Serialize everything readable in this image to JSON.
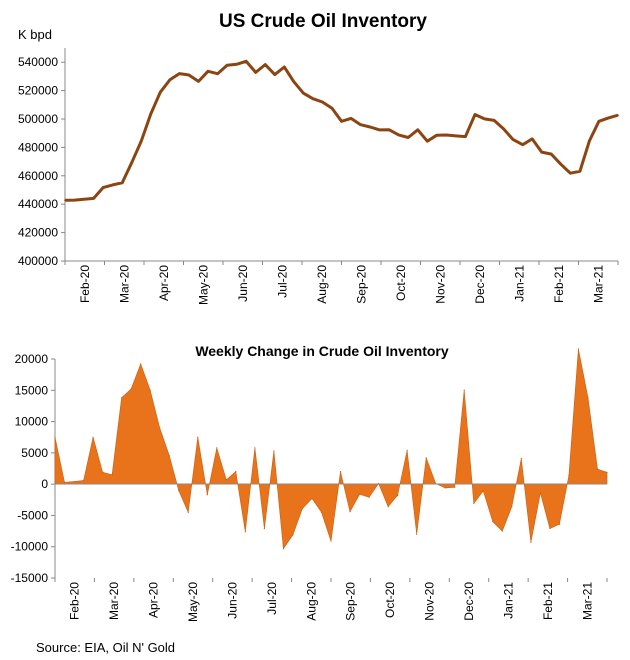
{
  "chart_data": [
    {
      "type": "line",
      "title": "US Crude Oil Inventory",
      "ylabel": "K bpd",
      "xlabel": "",
      "ylim": [
        400000,
        550000
      ],
      "yticks": [
        400000,
        420000,
        440000,
        460000,
        480000,
        500000,
        520000,
        540000
      ],
      "ytick_labels": [
        "400000",
        "420000",
        "440000",
        "460000",
        "480000",
        "500000",
        "520000",
        "540000"
      ],
      "month_labels": [
        "Feb-20",
        "Mar-20",
        "Apr-20",
        "May-20",
        "Jun-20",
        "Jul-20",
        "Aug-20",
        "Sep-20",
        "Oct-20",
        "Nov-20",
        "Dec-20",
        "Jan-21",
        "Feb-21",
        "Mar-21"
      ],
      "grid": false,
      "color": "#8B4513",
      "series": [
        {
          "name": "US Crude Oil Inventory",
          "values": [
            442800,
            442900,
            443500,
            444100,
            451700,
            453600,
            455100,
            469200,
            484500,
            503600,
            518900,
            527600,
            532000,
            531000,
            526500,
            533600,
            531900,
            537800,
            538500,
            540600,
            532800,
            538300,
            531300,
            536600,
            526300,
            518200,
            514300,
            512000,
            507500,
            498400,
            500400,
            496000,
            494400,
            492300,
            492400,
            488800,
            487000,
            492400,
            484400,
            488600,
            488700,
            488100,
            487600,
            503200,
            500100,
            499000,
            493000,
            485500,
            481900,
            486000,
            476700,
            475300,
            468200,
            461800,
            463200,
            484600,
            498400,
            500800,
            502700
          ]
        }
      ]
    },
    {
      "type": "area",
      "title": "Weekly Change in Crude Oil Inventory",
      "ylabel": "",
      "xlabel": "",
      "ylim": [
        -15000,
        20000
      ],
      "yticks": [
        -15000,
        -10000,
        -5000,
        0,
        5000,
        10000,
        15000,
        20000
      ],
      "ytick_labels": [
        "-15000",
        "-10000",
        "-5000",
        "0",
        "5000",
        "10000",
        "15000",
        "20000"
      ],
      "month_labels": [
        "Feb-20",
        "Mar-20",
        "Apr-20",
        "May-20",
        "Jun-20",
        "Jul-20",
        "Aug-20",
        "Sep-20",
        "Oct-20",
        "Nov-20",
        "Dec-20",
        "Jan-21",
        "Feb-21",
        "Mar-21"
      ],
      "grid": false,
      "color": "#E8731A",
      "series": [
        {
          "name": "Weekly Change",
          "values": [
            7500,
            300,
            400,
            600,
            7500,
            1900,
            1500,
            13800,
            15200,
            19200,
            15000,
            9000,
            4600,
            -1000,
            -4500,
            7500,
            -1700,
            5800,
            700,
            2000,
            -7600,
            5800,
            -7100,
            5300,
            -10300,
            -8100,
            -3900,
            -2300,
            -4500,
            -9100,
            2000,
            -4400,
            -1600,
            -2100,
            100,
            -3600,
            -1800,
            5400,
            -8000,
            4200,
            100,
            -600,
            -500,
            15000,
            -3100,
            -1100,
            -6000,
            -7500,
            -3600,
            4100,
            -9300,
            -1400,
            -7100,
            -6400,
            1400,
            21600,
            13800,
            2400,
            1900
          ]
        }
      ]
    }
  ],
  "footer": {
    "source": "Source: EIA, Oil N' Gold"
  }
}
